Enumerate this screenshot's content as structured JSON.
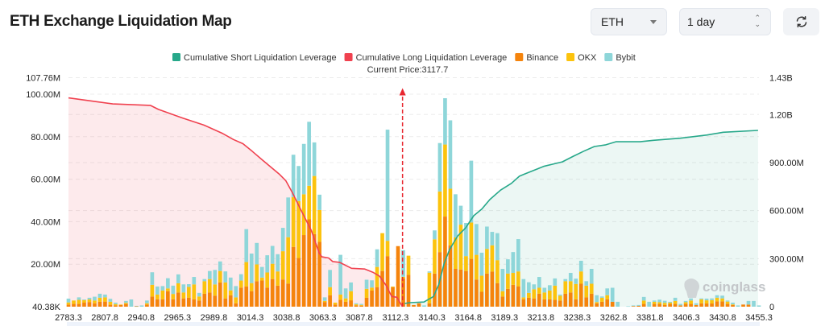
{
  "header": {
    "title": "ETH Exchange Liquidation Map",
    "symbol_select": {
      "value": "ETH",
      "icon": "caret-down-icon"
    },
    "period_select": {
      "value": "1 day",
      "icon": "up-down-chevron-icon"
    },
    "refresh_button": {
      "icon": "refresh-icon"
    }
  },
  "watermark": "coinglass",
  "chart_data": {
    "type": "bar",
    "stacked": true,
    "current_price_label": "Current Price:3117.7",
    "current_price": 3117.7,
    "legend": {
      "placement": "top-center",
      "items": [
        {
          "name": "Cumulative Short Liquidation Leverage",
          "color": "#27a88a"
        },
        {
          "name": "Cumulative Long Liquidation Leverage",
          "color": "#f0414f"
        },
        {
          "name": "Binance",
          "color": "#f5840c"
        },
        {
          "name": "OKX",
          "color": "#fcc30d"
        },
        {
          "name": "Bybit",
          "color": "#8ed6d9"
        }
      ]
    },
    "x_ticks": [
      "2783.3",
      "2807.8",
      "2940.8",
      "2965.3",
      "2989.8",
      "3014.3",
      "3038.8",
      "3063.3",
      "3087.8",
      "3112.3",
      "3140.3",
      "3164.8",
      "3189.3",
      "3213.8",
      "3238.3",
      "3262.8",
      "3381.8",
      "3406.3",
      "3430.8",
      "3455.3"
    ],
    "left_axis": {
      "unit": "M",
      "ylim": [
        0,
        107.76
      ],
      "ticks": [
        {
          "v": 0.04038,
          "label": "40.38K"
        },
        {
          "v": 20,
          "label": "20.00M"
        },
        {
          "v": 40,
          "label": "40.00M"
        },
        {
          "v": 60,
          "label": "60.00M"
        },
        {
          "v": 80,
          "label": "80.00M"
        },
        {
          "v": 100,
          "label": "100.00M"
        },
        {
          "v": 107.76,
          "label": "107.76M"
        }
      ]
    },
    "right_axis": {
      "unit": "B",
      "ylim": [
        0,
        1.43
      ],
      "ticks": [
        {
          "v": 0,
          "label": "0"
        },
        {
          "v": 0.3,
          "label": "300.00M"
        },
        {
          "v": 0.6,
          "label": "600.00M"
        },
        {
          "v": 0.9,
          "label": "900.00M"
        },
        {
          "v": 1.2,
          "label": "1.20B"
        },
        {
          "v": 1.43,
          "label": "1.43B"
        }
      ]
    },
    "grid": true,
    "bar_series": [
      "Binance",
      "OKX",
      "Bybit"
    ],
    "bars_millions": [
      [
        1,
        1,
        1.8
      ],
      [
        1.3,
        1.6,
        0
      ],
      [
        1.3,
        1.9,
        1.2
      ],
      [
        1.9,
        1.2,
        0.3
      ],
      [
        2.2,
        1.2,
        0.8
      ],
      [
        1.6,
        1.3,
        1.8
      ],
      [
        2.3,
        1.9,
        1.9
      ],
      [
        2.4,
        2,
        1.3
      ],
      [
        0.9,
        1.4,
        1.4
      ],
      [
        0.6,
        0.6,
        0.7
      ],
      [
        0.8,
        0.2,
        0
      ],
      [
        1.3,
        0.5,
        0.9
      ],
      [
        0,
        0,
        3.4
      ],
      [
        0.2,
        0,
        0.2
      ],
      [
        0,
        0,
        0.6
      ],
      [
        1,
        0.6,
        1.3
      ],
      [
        4.8,
        5.5,
        5.9
      ],
      [
        3.5,
        2.2,
        3.8
      ],
      [
        3.5,
        4.1,
        2.1
      ],
      [
        7.3,
        1.3,
        4.8
      ],
      [
        3.5,
        2.5,
        3.9
      ],
      [
        6.7,
        4.3,
        4.2
      ],
      [
        3.9,
        2.8,
        3.8
      ],
      [
        4.2,
        5.1,
        1.3
      ],
      [
        3.5,
        7,
        3.5
      ],
      [
        2.9,
        1.9,
        1.7
      ],
      [
        6.1,
        5.9,
        1
      ],
      [
        6.7,
        6.3,
        3.8
      ],
      [
        5.2,
        5.3,
        6.8
      ],
      [
        11.4,
        5.4,
        4.5
      ],
      [
        3.9,
        7.5,
        5.2
      ],
      [
        5.4,
        2.3,
        6
      ],
      [
        1.6,
        2.8,
        5.3
      ],
      [
        9,
        3.3,
        3
      ],
      [
        9.5,
        11.5,
        15.5
      ],
      [
        7.3,
        3.8,
        13.9
      ],
      [
        12,
        7.9,
        10.1
      ],
      [
        12.3,
        1.4,
        5
      ],
      [
        9,
        7.1,
        8.1
      ],
      [
        13,
        7.2,
        8.4
      ],
      [
        9.9,
        6.7,
        8.1
      ],
      [
        12.8,
        13.3,
        11
      ],
      [
        10.9,
        21.8,
        18.7
      ],
      [
        28.1,
        23.5,
        19.9
      ],
      [
        22.9,
        26.8,
        16.5
      ],
      [
        33.7,
        19.2,
        23.7
      ],
      [
        41.1,
        15.8,
        30.1
      ],
      [
        34.2,
        27.3,
        15.8
      ],
      [
        30.5,
        15,
        7.2
      ],
      [
        2.2,
        0.5,
        1.7
      ],
      [
        5.4,
        3.8,
        8.1
      ],
      [
        1,
        0.9,
        0
      ],
      [
        3.2,
        2.5,
        18.7
      ],
      [
        2.3,
        1.6,
        4.7
      ],
      [
        3,
        4.3,
        4.1
      ],
      [
        0.6,
        0.5,
        0.5
      ],
      [
        0.5,
        0.3,
        0.5
      ],
      [
        4.2,
        4.2,
        4.3
      ],
      [
        7.6,
        1.4,
        3.4
      ],
      [
        9.2,
        9.5,
        8.3
      ],
      [
        16.8,
        17.8,
        0
      ],
      [
        23.8,
        7.2,
        52.3
      ],
      [
        9.2,
        0.3,
        0
      ],
      [
        28.5,
        0,
        0
      ],
      [
        13.3,
        0.8,
        12.5
      ],
      [
        15,
        9,
        0
      ],
      [
        0.8,
        0,
        0
      ],
      [
        1.6,
        0,
        0
      ],
      [
        0,
        0,
        0.6
      ],
      [
        1.6,
        14.4,
        0.6
      ],
      [
        15.6,
        16.1,
        4.2
      ],
      [
        25.7,
        28.5,
        22.8
      ],
      [
        42.4,
        33.9,
        21.8
      ],
      [
        28.9,
        26.6,
        32.2
      ],
      [
        17.8,
        14.8,
        20.3
      ],
      [
        17.5,
        21.1,
        8.9
      ],
      [
        16.8,
        7,
        15.6
      ],
      [
        22.5,
        17.1,
        29.1
      ],
      [
        12.8,
        11.6,
        14.5
      ],
      [
        7,
        7.6,
        10.8
      ],
      [
        15.6,
        11.6,
        10.5
      ],
      [
        16.5,
        12.4,
        6.3
      ],
      [
        11.1,
        10.8,
        12.7
      ],
      [
        4.8,
        2.5,
        10.5
      ],
      [
        8.4,
        7.2,
        6.7
      ],
      [
        10.3,
        5.6,
        9.8
      ],
      [
        9.6,
        7,
        15.2
      ],
      [
        3.5,
        0.9,
        8.6
      ],
      [
        4.2,
        2.3,
        5
      ],
      [
        3.9,
        4.3,
        2.3
      ],
      [
        6.1,
        2.8,
        5.1
      ],
      [
        3.5,
        3.2,
        2.2
      ],
      [
        3.5,
        4.1,
        2.5
      ],
      [
        3.2,
        6.7,
        3.4
      ],
      [
        2.9,
        2.3,
        0.5
      ],
      [
        6.1,
        5.9,
        1
      ],
      [
        6.7,
        5.3,
        3.9
      ],
      [
        3.5,
        7.2,
        2.5
      ],
      [
        10.8,
        5.8,
        5
      ],
      [
        4.4,
        5.5,
        2.1
      ],
      [
        6.1,
        4.7,
        7
      ],
      [
        1.6,
        0.6,
        3.2
      ],
      [
        2.3,
        1.9,
        0.6
      ],
      [
        3.5,
        1.9,
        3.2
      ],
      [
        2.3,
        0,
        6.6
      ],
      [
        0,
        0,
        2.3
      ],
      [
        0,
        0,
        0
      ],
      [
        0,
        0,
        0.2
      ],
      [
        0.3,
        0,
        0.3
      ],
      [
        0.4,
        0,
        0.4
      ],
      [
        1.3,
        1.6,
        1.7
      ],
      [
        0,
        0,
        2.3
      ],
      [
        1.3,
        1,
        0.6
      ],
      [
        1.3,
        0.8,
        1.2
      ],
      [
        0.8,
        1,
        1
      ],
      [
        1.3,
        0.6,
        0.4
      ],
      [
        1.3,
        1.4,
        1.5
      ],
      [
        0.6,
        0,
        0.7
      ],
      [
        1.3,
        0.8,
        0.6
      ],
      [
        1.3,
        1.6,
        1
      ],
      [
        0.8,
        0,
        0.8
      ],
      [
        1.6,
        1.9,
        0.4
      ],
      [
        1.5,
        1.5,
        0.8
      ],
      [
        1.5,
        1.6,
        0.8
      ],
      [
        2.5,
        1.7,
        1.2
      ],
      [
        2.5,
        1.4,
        1.3
      ],
      [
        1.3,
        1.1,
        0.5
      ],
      [
        0.8,
        0.3,
        0.8
      ],
      [
        0,
        0,
        0.6
      ],
      [
        1,
        0,
        0
      ],
      [
        1,
        0,
        1.7
      ],
      [
        0,
        0,
        2.7
      ],
      [
        0,
        0,
        0.6
      ]
    ],
    "cumulative_long_billions": [
      [
        2783.3,
        1.304
      ],
      [
        2836.8,
        1.266
      ],
      [
        2947.0,
        1.257
      ],
      [
        2952.4,
        1.232
      ],
      [
        2968.7,
        1.178
      ],
      [
        2983.1,
        1.134
      ],
      [
        2995.8,
        1.081
      ],
      [
        3003.0,
        1.044
      ],
      [
        3009.4,
        1.018
      ],
      [
        3015.6,
        0.971
      ],
      [
        3022.9,
        0.913
      ],
      [
        3033.8,
        0.829
      ],
      [
        3038.3,
        0.787
      ],
      [
        3042.8,
        0.711
      ],
      [
        3048.2,
        0.61
      ],
      [
        3055.5,
        0.476
      ],
      [
        3060.9,
        0.333
      ],
      [
        3062.7,
        0.311
      ],
      [
        3067.2,
        0.304
      ],
      [
        3069.9,
        0.282
      ],
      [
        3074.5,
        0.277
      ],
      [
        3082.6,
        0.24
      ],
      [
        3091.6,
        0.235
      ],
      [
        3097.0,
        0.215
      ],
      [
        3101.6,
        0.19
      ],
      [
        3106.1,
        0.131
      ],
      [
        3109.7,
        0.064
      ],
      [
        3113.3,
        0.059
      ],
      [
        3117.7,
        0.0
      ]
    ],
    "cumulative_short_billions": [
      [
        3119.3,
        0.02
      ],
      [
        3123.4,
        0.025
      ],
      [
        3134.2,
        0.029
      ],
      [
        3141.4,
        0.064
      ],
      [
        3145.0,
        0.14
      ],
      [
        3148.7,
        0.274
      ],
      [
        3152.3,
        0.358
      ],
      [
        3157.7,
        0.442
      ],
      [
        3163.1,
        0.492
      ],
      [
        3168.5,
        0.568
      ],
      [
        3174.0,
        0.61
      ],
      [
        3179.4,
        0.669
      ],
      [
        3186.6,
        0.728
      ],
      [
        3193.9,
        0.77
      ],
      [
        3199.3,
        0.815
      ],
      [
        3202.9,
        0.829
      ],
      [
        3211.9,
        0.862
      ],
      [
        3215.6,
        0.876
      ],
      [
        3222.8,
        0.892
      ],
      [
        3228.2,
        0.904
      ],
      [
        3235.4,
        0.938
      ],
      [
        3242.7,
        0.971
      ],
      [
        3249.9,
        1.0
      ],
      [
        3257.1,
        1.01
      ],
      [
        3270.4,
        1.03
      ],
      [
        3305.6,
        1.03
      ],
      [
        3349.4,
        1.03
      ],
      [
        3384.2,
        1.039
      ],
      [
        3402.3,
        1.052
      ],
      [
        3420.4,
        1.072
      ],
      [
        3431.2,
        1.089
      ],
      [
        3454.7,
        1.101
      ]
    ]
  }
}
